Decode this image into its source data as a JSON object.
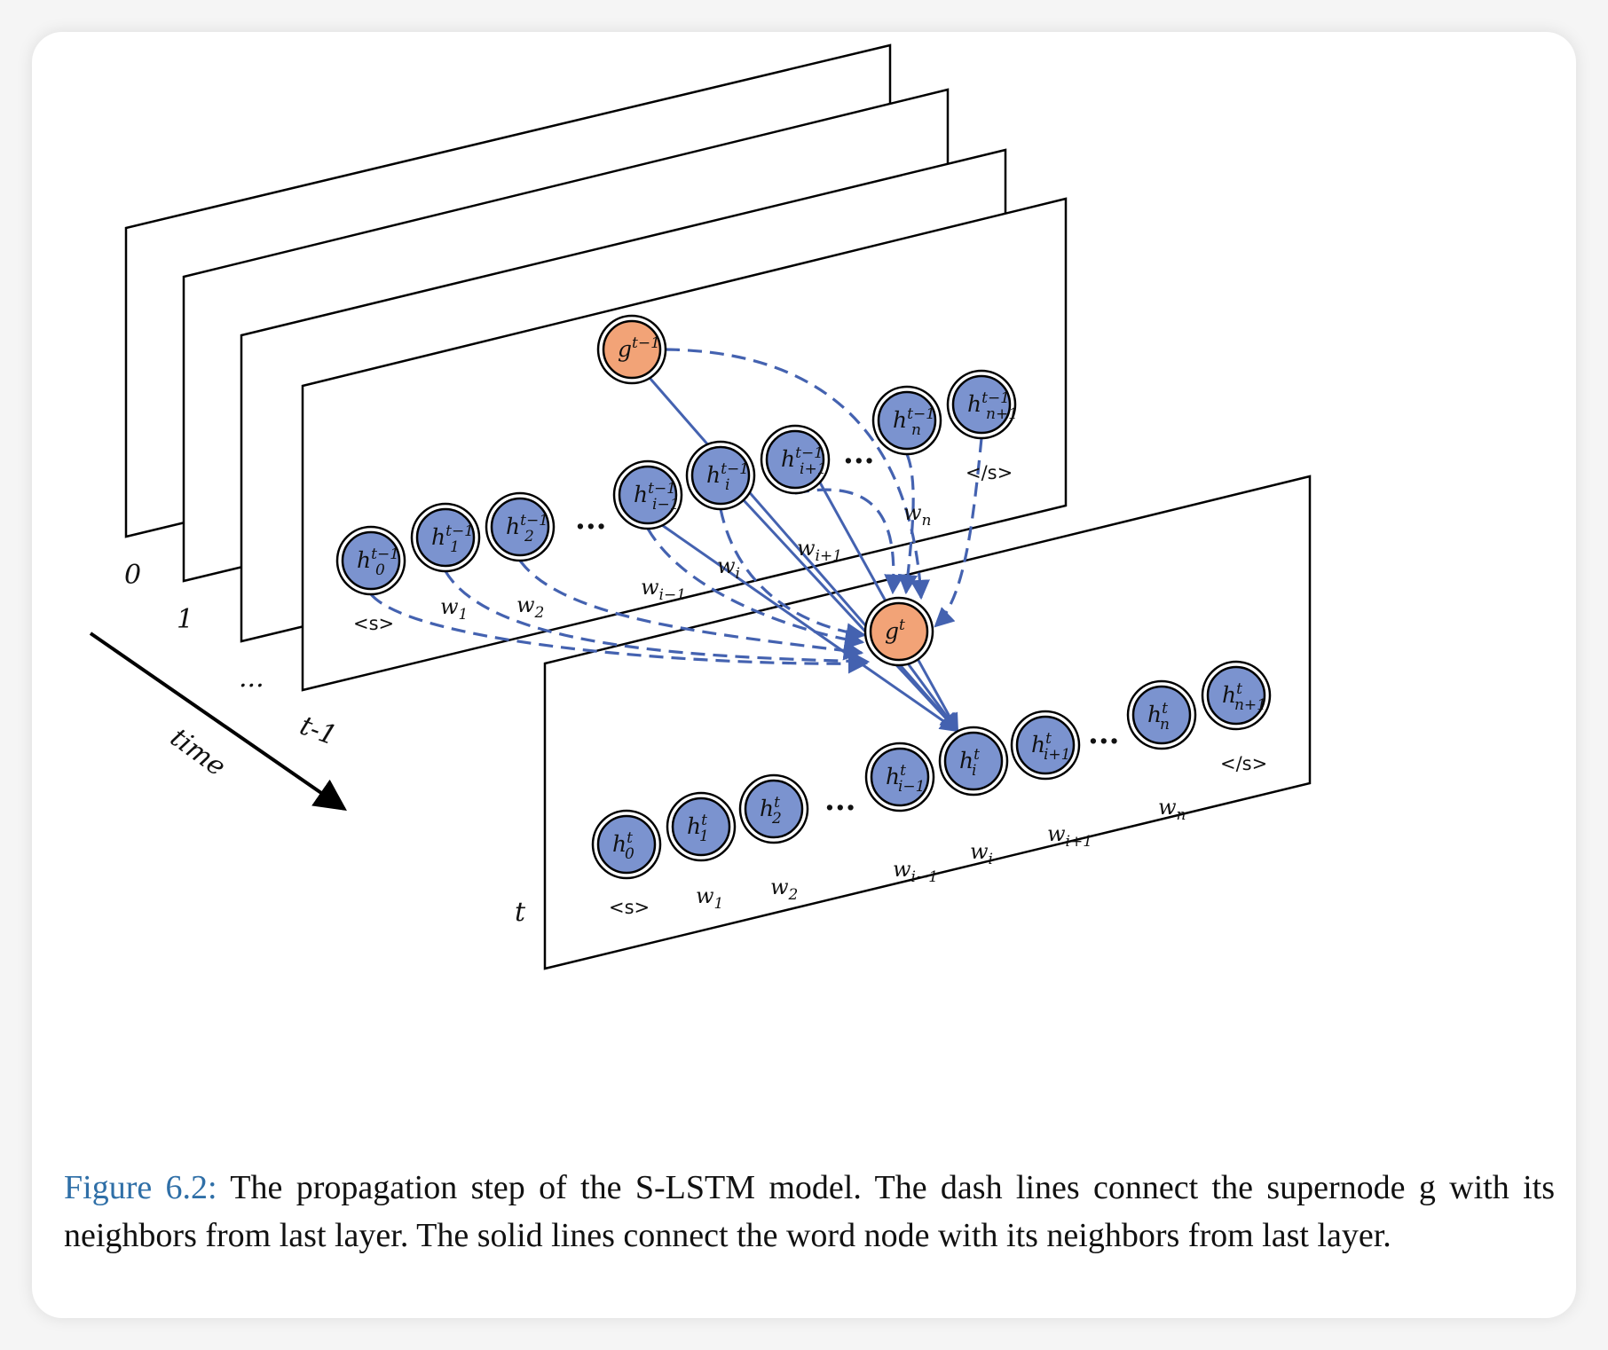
{
  "caption": {
    "figure_number": "Figure 6.2:",
    "text": "The propagation step of the S-LSTM model. The dash lines connect the supernode g with its neighbors from last layer. The solid lines connect the word node with its neighbors from last layer."
  },
  "time_axis": {
    "label": "time",
    "layer_labels": [
      "0",
      "1",
      "...",
      "t-1",
      "t"
    ]
  },
  "layer_prev": {
    "supernode": {
      "base": "g",
      "sup": "t−1"
    },
    "nodes": [
      {
        "base": "h",
        "sub": "0",
        "sup": "t−1",
        "word_base": "",
        "word_sub": "",
        "token": "<s>"
      },
      {
        "base": "h",
        "sub": "1",
        "sup": "t−1",
        "word_base": "w",
        "word_sub": "1",
        "token": ""
      },
      {
        "base": "h",
        "sub": "2",
        "sup": "t−1",
        "word_base": "w",
        "word_sub": "2",
        "token": ""
      },
      {
        "base": "h",
        "sub": "i−1",
        "sup": "t−1",
        "word_base": "w",
        "word_sub": "i−1",
        "token": ""
      },
      {
        "base": "h",
        "sub": "i",
        "sup": "t−1",
        "word_base": "w",
        "word_sub": "i",
        "token": ""
      },
      {
        "base": "h",
        "sub": "i+1",
        "sup": "t−1",
        "word_base": "w",
        "word_sub": "i+1",
        "token": ""
      },
      {
        "base": "h",
        "sub": "n",
        "sup": "t−1",
        "word_base": "w",
        "word_sub": "n",
        "token": ""
      },
      {
        "base": "h",
        "sub": "n+1",
        "sup": "t−1",
        "word_base": "",
        "word_sub": "",
        "token": "</s>"
      }
    ]
  },
  "layer_curr": {
    "supernode": {
      "base": "g",
      "sup": "t"
    },
    "nodes": [
      {
        "base": "h",
        "sub": "0",
        "sup": "t",
        "word_base": "",
        "word_sub": "",
        "token": "<s>"
      },
      {
        "base": "h",
        "sub": "1",
        "sup": "t",
        "word_base": "w",
        "word_sub": "1",
        "token": ""
      },
      {
        "base": "h",
        "sub": "2",
        "sup": "t",
        "word_base": "w",
        "word_sub": "2",
        "token": ""
      },
      {
        "base": "h",
        "sub": "i−1",
        "sup": "t",
        "word_base": "w",
        "word_sub": "i−1",
        "token": ""
      },
      {
        "base": "h",
        "sub": "i",
        "sup": "t",
        "word_base": "w",
        "word_sub": "i",
        "token": ""
      },
      {
        "base": "h",
        "sub": "i+1",
        "sup": "t",
        "word_base": "w",
        "word_sub": "i+1",
        "token": ""
      },
      {
        "base": "h",
        "sub": "n",
        "sup": "t",
        "word_base": "w",
        "word_sub": "n",
        "token": ""
      },
      {
        "base": "h",
        "sub": "n+1",
        "sup": "t",
        "word_base": "",
        "word_sub": "",
        "token": "</s>"
      }
    ]
  },
  "ellipsis": "...",
  "colors": {
    "word_node": "#7b93cf",
    "supernode": "#f2a377",
    "edge": "#4462b0",
    "figure_number": "#2f6fa7"
  }
}
